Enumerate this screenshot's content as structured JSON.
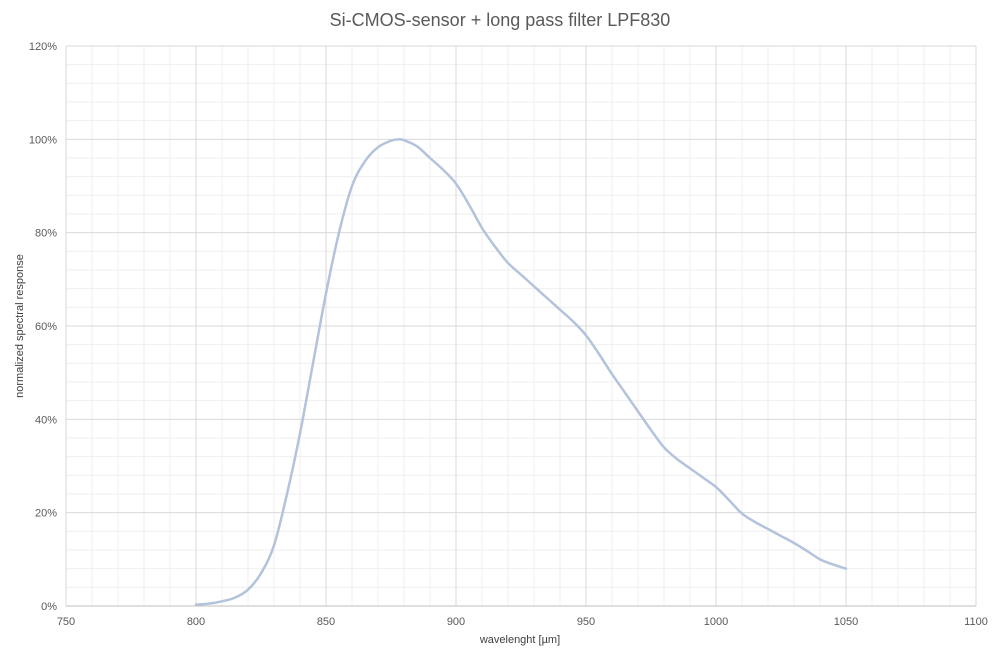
{
  "chart_data": {
    "type": "line",
    "title": "Si-CMOS-sensor + long pass filter LPF830",
    "xlabel": "wavelenght [µm]",
    "ylabel": "normalized spectral response",
    "xlim": [
      750,
      1100
    ],
    "ylim": [
      0,
      1.2
    ],
    "x_major_step": 50,
    "x_minor_step": 10,
    "y_major_step": 0.2,
    "y_minor_step": 0.04,
    "x_ticks": [
      "750",
      "800",
      "850",
      "900",
      "950",
      "1000",
      "1050",
      "1100"
    ],
    "y_ticks": [
      "0%",
      "20%",
      "40%",
      "60%",
      "80%",
      "100%",
      "120%"
    ],
    "grid": true,
    "legend": "none",
    "series": [
      {
        "color": "#b4c3dc",
        "x": [
          800,
          805,
          810,
          815,
          820,
          825,
          830,
          835,
          840,
          845,
          850,
          855,
          860,
          865,
          870,
          875,
          878,
          880,
          885,
          890,
          895,
          900,
          905,
          910,
          915,
          920,
          925,
          930,
          935,
          940,
          945,
          950,
          955,
          960,
          965,
          970,
          975,
          980,
          985,
          990,
          995,
          1000,
          1005,
          1010,
          1015,
          1020,
          1025,
          1030,
          1035,
          1040,
          1045,
          1050
        ],
        "y": [
          0.003,
          0.005,
          0.01,
          0.018,
          0.035,
          0.07,
          0.13,
          0.24,
          0.37,
          0.52,
          0.67,
          0.8,
          0.9,
          0.953,
          0.983,
          0.997,
          1.0,
          0.998,
          0.985,
          0.96,
          0.935,
          0.905,
          0.86,
          0.81,
          0.77,
          0.735,
          0.71,
          0.685,
          0.66,
          0.635,
          0.61,
          0.58,
          0.54,
          0.497,
          0.457,
          0.417,
          0.377,
          0.34,
          0.315,
          0.295,
          0.275,
          0.255,
          0.227,
          0.198,
          0.18,
          0.165,
          0.15,
          0.135,
          0.118,
          0.1,
          0.089,
          0.08
        ]
      }
    ]
  }
}
